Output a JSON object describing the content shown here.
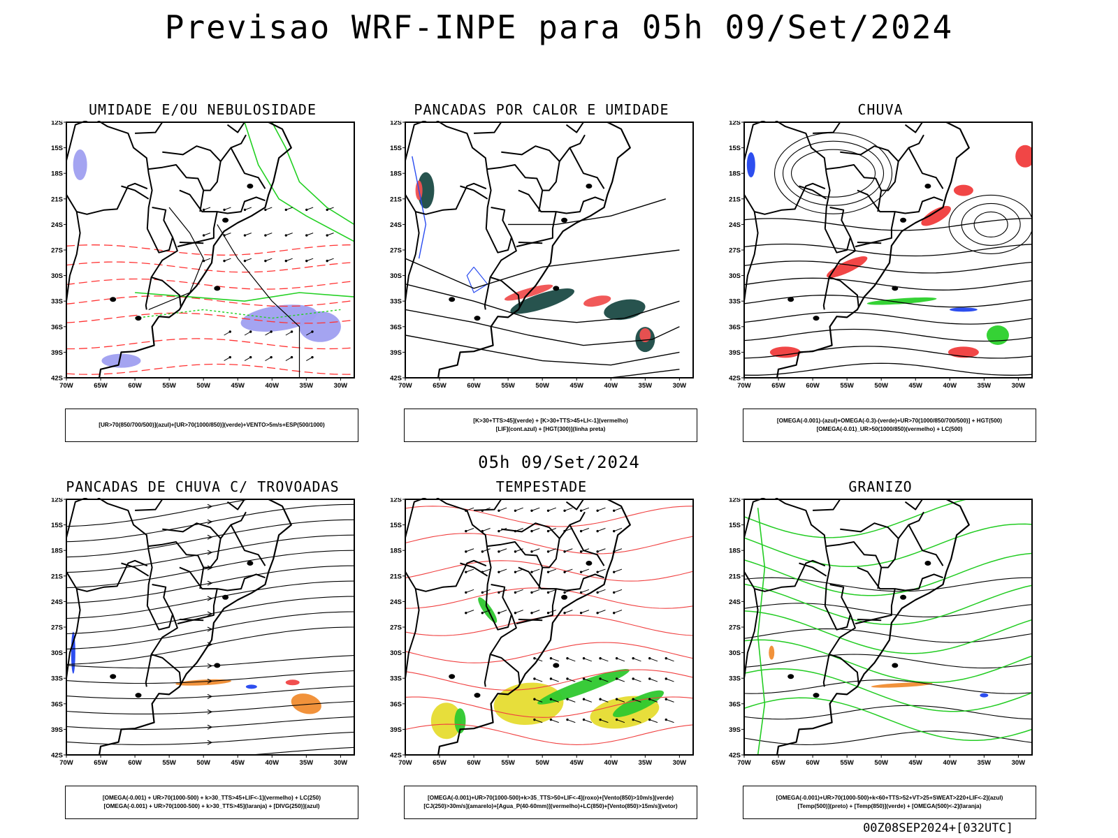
{
  "header": {
    "title": "Previsao WRF-INPE  para 05h 09/Set/2024",
    "mid_title": "05h 09/Set/2024",
    "run_label": "00Z08SEP2024+[032UTC]"
  },
  "axes": {
    "lat_ticks": [
      "12S",
      "15S",
      "18S",
      "21S",
      "24S",
      "27S",
      "30S",
      "33S",
      "36S",
      "39S",
      "42S"
    ],
    "lon_ticks": [
      "70W",
      "65W",
      "60W",
      "55W",
      "50W",
      "45W",
      "40W",
      "35W",
      "30W"
    ]
  },
  "panels": [
    {
      "id": "umidade",
      "title": "UMIDADE E/OU NEBULOSIDADE",
      "legend": [
        "[UR>70(850/700/500)](azul)+[UR>70(1000/850)](verde)+VENTO>5m/s+ESP(500/1000)"
      ],
      "colors": {
        "blue": "#9f9ff0",
        "green": "#22d022",
        "red": "#ff3333",
        "black": "#000000"
      }
    },
    {
      "id": "pancadas-calor",
      "title": "PANCADAS POR CALOR E UMIDADE",
      "legend": [
        "[K>30+TTS>45](verde) + [K>30+TTS>45+LI<-1](vermelho)",
        "[LIF](cont.azul) + [HGT(300)](linha preta)"
      ],
      "colors": {
        "teal": "#1b4a44",
        "red": "#f05050",
        "blue": "#2a4cf0"
      }
    },
    {
      "id": "chuva",
      "title": "CHUVA",
      "legend": [
        "[OMEGA(-0.001)-(azul)+OMEGA(-0.3)-(verde)+UR>70(1000/850/700/500)] + HGT(500)",
        "[OMEGA(-0.01)_UR>50(1000/850)(vermelho) + LC(500)"
      ],
      "colors": {
        "red": "#f03c3c",
        "green": "#2ad02a",
        "blue": "#2244ee"
      }
    },
    {
      "id": "pancadas-trovoadas",
      "title": "PANCADAS DE CHUVA C/ TROVOADAS",
      "legend": [
        "[OMEGA(-0.001) + UR>70(1000-500) + k>30_TTS>45+LIF<-1](vermelho) + LC(250)",
        "[OMEGA(-0.001) + UR>70(1000-500) + k>30_TTS>45](laranja) + [DIVG(250)](azul)"
      ],
      "colors": {
        "orange": "#f08c30",
        "red": "#f04444",
        "blue": "#2244ee"
      }
    },
    {
      "id": "tempestade",
      "title": "TEMPESTADE",
      "legend": [
        "[OMEGA(-0.001)+UR>70(1000-500)+k>35_TTS>50+LIF<-4](roxo)+[Vento(850)>10m/s](verde)",
        "[CJ(250)>30m/s](amarelo)+[Agua_P(40-60mm)](vermelho)+LC(850)+[Vento(850)>15m/s](vetor)"
      ],
      "colors": {
        "yellow": "#e6dc30",
        "green": "#2ec82e",
        "red": "#f04040"
      }
    },
    {
      "id": "granizo",
      "title": "GRANIZO",
      "legend": [
        "[OMEGA(-0.001)+UR>70(1000-500)+k<60+TTS>52+VT>25+SWEAT>220+LIF<-2](azul)",
        "[Temp(500)](preto) + [Temp(850)](verde) + [OMEGA(500)<-2](laranja)"
      ],
      "colors": {
        "green": "#22cc22",
        "orange": "#f08c30",
        "blue": "#2244ee"
      }
    }
  ]
}
